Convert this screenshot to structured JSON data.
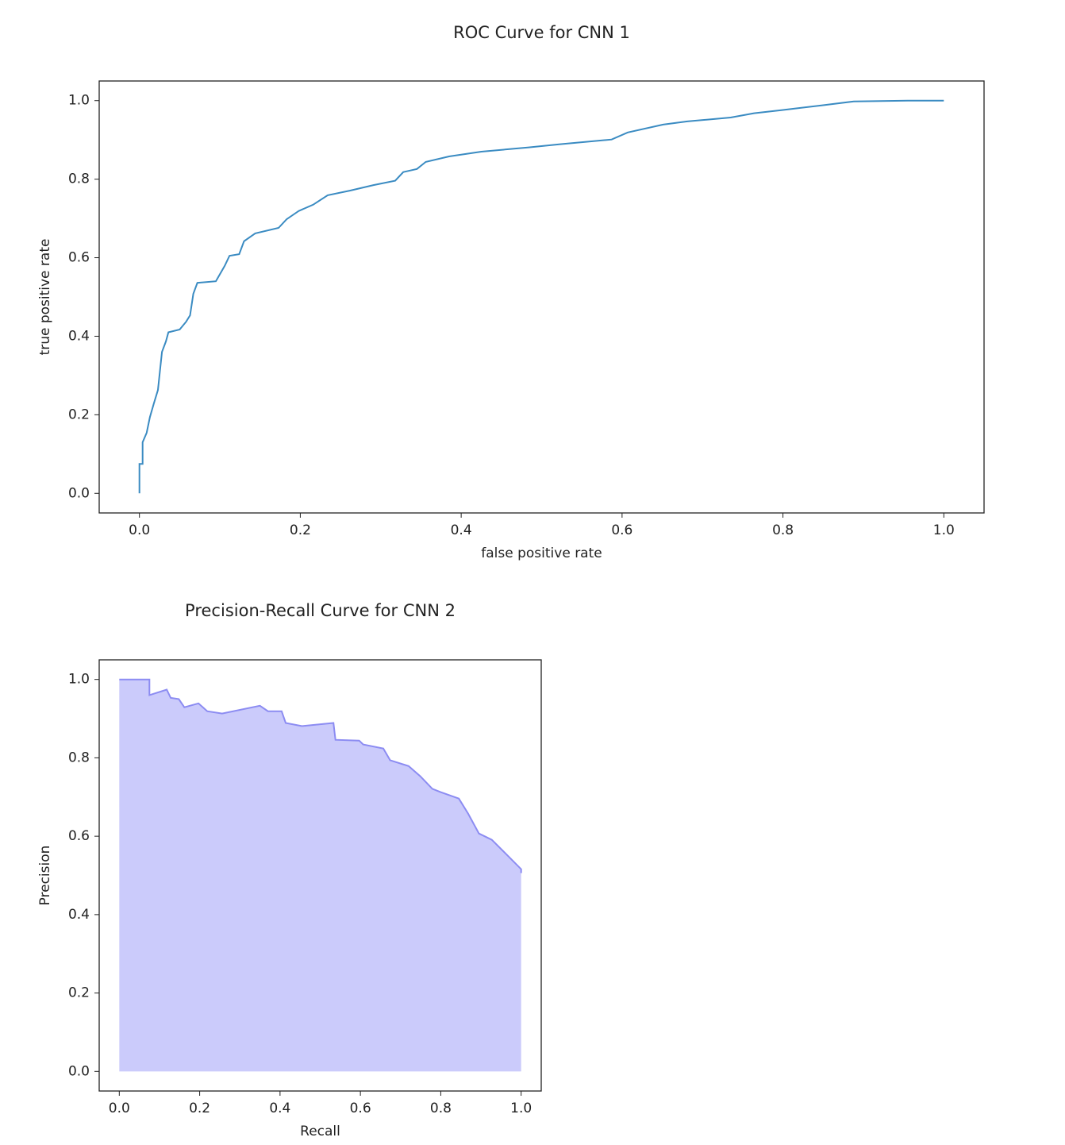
{
  "chart_data": [
    {
      "type": "line",
      "title": "ROC Curve for CNN 1",
      "x_label": "false positive rate",
      "y_label": "true positive rate",
      "x": [
        0,
        0,
        0.004,
        0.004,
        0.009,
        0.013,
        0.018,
        0.023,
        0.028,
        0.033,
        0.036,
        0.05,
        0.058,
        0.063,
        0.067,
        0.072,
        0.095,
        0.106,
        0.112,
        0.124,
        0.13,
        0.144,
        0.173,
        0.183,
        0.198,
        0.216,
        0.234,
        0.262,
        0.291,
        0.318,
        0.328,
        0.345,
        0.356,
        0.385,
        0.425,
        0.484,
        0.523,
        0.587,
        0.607,
        0.651,
        0.681,
        0.735,
        0.764,
        0.799,
        0.848,
        0.888,
        0.961,
        1
      ],
      "values": [
        0,
        0.075,
        0.075,
        0.13,
        0.154,
        0.194,
        0.229,
        0.263,
        0.36,
        0.387,
        0.41,
        0.417,
        0.437,
        0.453,
        0.508,
        0.536,
        0.54,
        0.579,
        0.605,
        0.609,
        0.642,
        0.662,
        0.676,
        0.698,
        0.719,
        0.735,
        0.759,
        0.771,
        0.785,
        0.796,
        0.818,
        0.826,
        0.844,
        0.858,
        0.87,
        0.881,
        0.889,
        0.901,
        0.919,
        0.939,
        0.947,
        0.957,
        0.968,
        0.976,
        0.988,
        0.998,
        1,
        1
      ],
      "color": "#3a8bc2",
      "xlim": [
        -0.05,
        1.05
      ],
      "ylim": [
        -0.05,
        1.05
      ],
      "xticks": [
        {
          "value": 0,
          "label": "0.0"
        },
        0.2,
        0.4,
        0.6,
        0.8,
        {
          "value": 1,
          "label": "1.0"
        }
      ],
      "yticks": [
        {
          "value": 0,
          "label": "0.0"
        },
        0.2,
        0.4,
        0.6,
        0.8,
        {
          "value": 1,
          "label": "1.0"
        }
      ]
    },
    {
      "type": "area",
      "title": "Precision-Recall Curve for CNN 2",
      "x_label": "Recall",
      "y_label": "Precision",
      "x": [
        0,
        0.075,
        0.075,
        0.118,
        0.128,
        0.148,
        0.162,
        0.197,
        0.219,
        0.256,
        0.35,
        0.37,
        0.404,
        0.414,
        0.454,
        0.533,
        0.538,
        0.597,
        0.607,
        0.657,
        0.674,
        0.72,
        0.749,
        0.779,
        0.799,
        0.845,
        0.868,
        0.895,
        0.927,
        0.966,
        1,
        1
      ],
      "values": [
        1,
        1,
        0.96,
        0.974,
        0.953,
        0.95,
        0.929,
        0.939,
        0.919,
        0.913,
        0.933,
        0.919,
        0.919,
        0.889,
        0.881,
        0.889,
        0.846,
        0.844,
        0.834,
        0.824,
        0.794,
        0.779,
        0.753,
        0.721,
        0.713,
        0.696,
        0.658,
        0.607,
        0.591,
        0.551,
        0.516,
        0.506
      ],
      "color": "#8c8cf2",
      "fill_color": "#cbcbfb",
      "xlim": [
        -0.05,
        1.05
      ],
      "ylim": [
        -0.05,
        1.05
      ],
      "xticks": [
        {
          "value": 0,
          "label": "0.0"
        },
        0.2,
        0.4,
        0.6,
        0.8,
        {
          "value": 1,
          "label": "1.0"
        }
      ],
      "yticks": [
        {
          "value": 0,
          "label": "0.0"
        },
        0.2,
        0.4,
        0.6,
        0.8,
        {
          "value": 1,
          "label": "1.0"
        }
      ]
    }
  ]
}
